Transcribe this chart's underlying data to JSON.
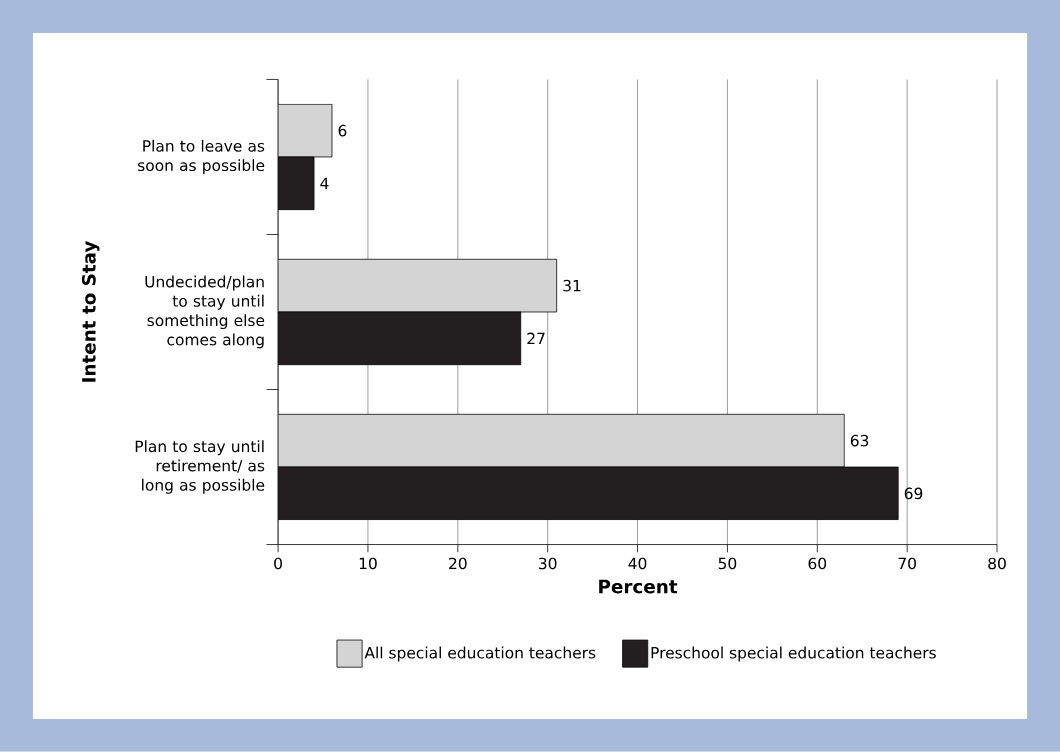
{
  "chart_data": {
    "type": "bar",
    "orientation": "horizontal",
    "ylabel": "Intent to Stay",
    "xlabel": "Percent",
    "categories": [
      "Plan to leave as soon as possible",
      "Undecided/plan to stay until something else comes along",
      "Plan to stay until retirement/ as long as possible"
    ],
    "series": [
      {
        "name": "All special education teachers",
        "color": "#d4d4d4",
        "values": [
          6,
          31,
          63
        ]
      },
      {
        "name": "Preschool special education teachers",
        "color": "#231f20",
        "values": [
          4,
          27,
          69
        ]
      }
    ],
    "xlim": [
      0,
      80
    ],
    "xticks": [
      0,
      10,
      20,
      30,
      40,
      50,
      60,
      70,
      80
    ],
    "grid": "x",
    "legend": "bottom",
    "data_labels": true
  }
}
